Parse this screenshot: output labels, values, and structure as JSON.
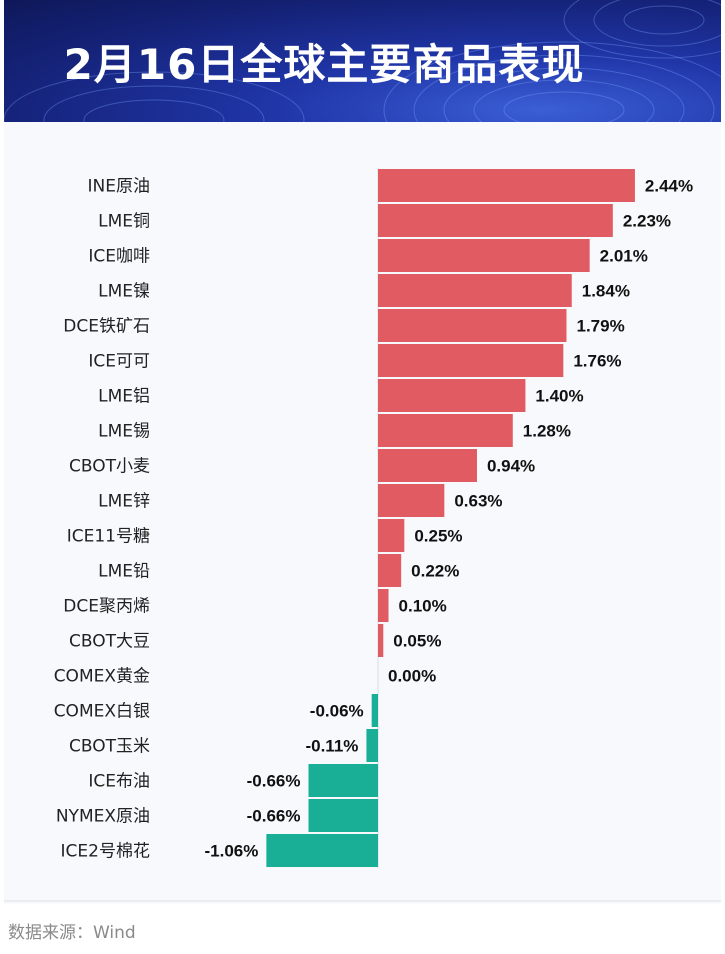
{
  "header": {
    "title": "2月16日全球主要商品表现"
  },
  "source": "数据来源：Wind",
  "colors": {
    "positive": "#e05c62",
    "negative": "#19ae96",
    "banner": "#1a2a8a"
  },
  "chart_data": {
    "type": "bar",
    "orientation": "horizontal",
    "title": "2月16日全球主要商品表现",
    "unit": "%",
    "categories": [
      "INE原油",
      "LME铜",
      "ICE咖啡",
      "LME镍",
      "DCE铁矿石",
      "ICE可可",
      "LME铝",
      "LME锡",
      "CBOT小麦",
      "LME锌",
      "ICE11号糖",
      "LME铅",
      "DCE聚丙烯",
      "CBOT大豆",
      "COMEX黄金",
      "COMEX白银",
      "CBOT玉米",
      "ICE布油",
      "NYMEX原油",
      "ICE2号棉花"
    ],
    "values": [
      2.44,
      2.23,
      2.01,
      1.84,
      1.79,
      1.76,
      1.4,
      1.28,
      0.94,
      0.63,
      0.25,
      0.22,
      0.1,
      0.05,
      0.0,
      -0.06,
      -0.11,
      -0.66,
      -0.66,
      -1.06
    ],
    "labels": [
      "2.44%",
      "2.23%",
      "2.01%",
      "1.84%",
      "1.79%",
      "1.76%",
      "1.40%",
      "1.28%",
      "0.94%",
      "0.63%",
      "0.25%",
      "0.22%",
      "0.10%",
      "0.05%",
      "0.00%",
      "-0.06%",
      "-0.11%",
      "-0.66%",
      "-0.66%",
      "-1.06%"
    ],
    "grid": false,
    "legend": "none"
  }
}
